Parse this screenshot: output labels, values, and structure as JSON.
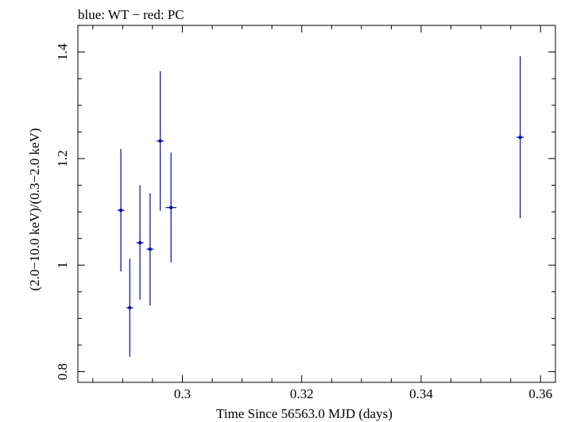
{
  "chart_data": {
    "type": "scatter",
    "title": "blue: WT − red: PC",
    "xlabel": "Time Since 56563.0 MJD (days)",
    "ylabel": "(2.0−10.0 keV)/(0.3−2.0 keV)",
    "xlim": [
      0.2825,
      0.3625
    ],
    "ylim": [
      0.78,
      1.45
    ],
    "x_ticks": [
      0.3,
      0.32,
      0.34,
      0.36
    ],
    "x_tick_labels": [
      "0.3",
      "0.32",
      "0.34",
      "0.36"
    ],
    "y_ticks": [
      0.8,
      1.0,
      1.2,
      1.4
    ],
    "y_tick_labels": [
      "0.8",
      "1",
      "1.2",
      "1.4"
    ],
    "grid": false,
    "series": [
      {
        "name": "WT",
        "color": "#0000cc",
        "points": [
          {
            "x": 0.2897,
            "xerr": 0.0006,
            "y": 1.103,
            "yerr_lo": 0.115,
            "yerr_hi": 0.115
          },
          {
            "x": 0.2912,
            "xerr": 0.0006,
            "y": 0.92,
            "yerr_lo": 0.092,
            "yerr_hi": 0.092
          },
          {
            "x": 0.2929,
            "xerr": 0.0006,
            "y": 1.042,
            "yerr_lo": 0.107,
            "yerr_hi": 0.108
          },
          {
            "x": 0.2946,
            "xerr": 0.0006,
            "y": 1.03,
            "yerr_lo": 0.106,
            "yerr_hi": 0.105
          },
          {
            "x": 0.2963,
            "xerr": 0.0006,
            "y": 1.233,
            "yerr_lo": 0.131,
            "yerr_hi": 0.131
          },
          {
            "x": 0.2981,
            "xerr": 0.0009,
            "y": 1.108,
            "yerr_lo": 0.103,
            "yerr_hi": 0.103
          },
          {
            "x": 0.3566,
            "xerr": 0.0006,
            "y": 1.24,
            "yerr_lo": 0.152,
            "yerr_hi": 0.152
          }
        ]
      }
    ]
  }
}
